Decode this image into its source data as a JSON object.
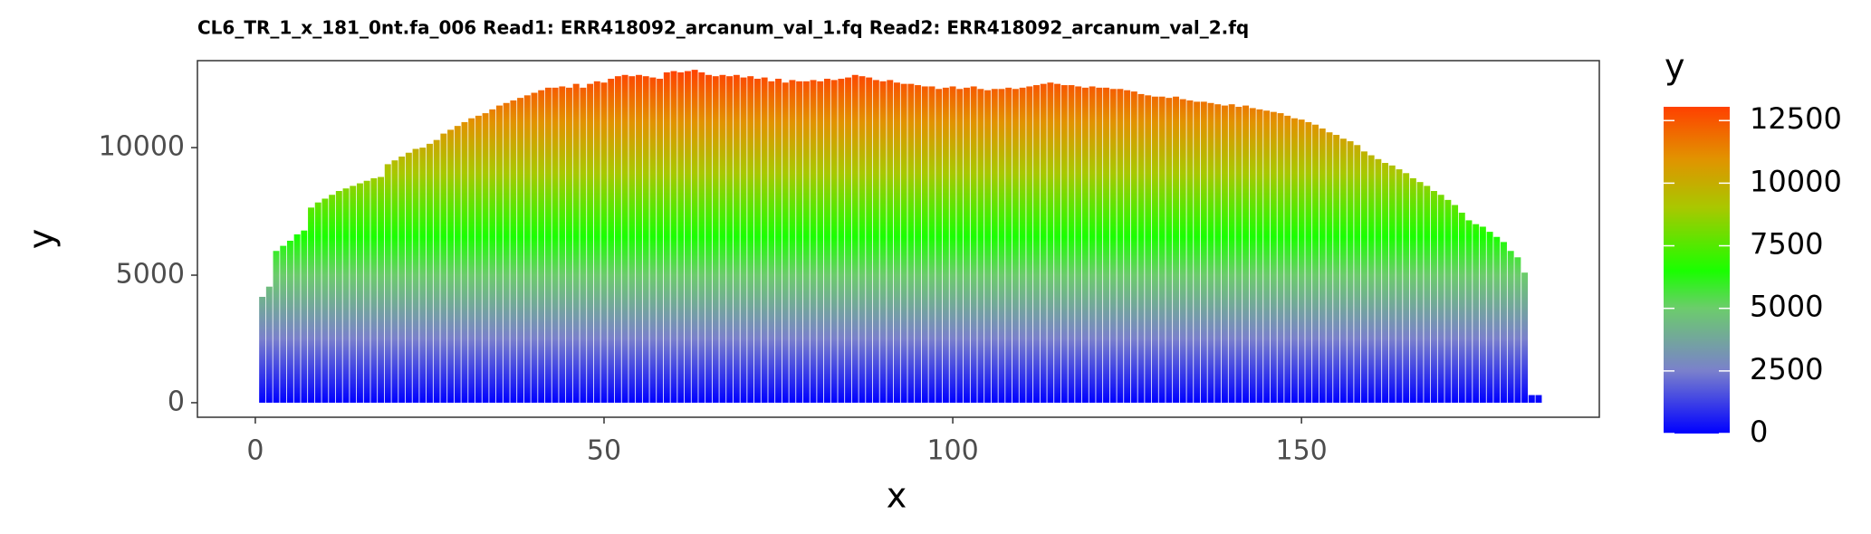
{
  "chart_data": {
    "type": "bar",
    "title": "CL6_TR_1_x_181_0nt.fa_006 Read1: ERR418092_arcanum_val_1.fq Read2: ERR418092_arcanum_val_2.fq",
    "x_label": "x",
    "y_label": "y",
    "x": [
      1,
      2,
      3,
      4,
      5,
      6,
      7,
      8,
      9,
      10,
      11,
      12,
      13,
      14,
      15,
      16,
      17,
      18,
      19,
      20,
      21,
      22,
      23,
      24,
      25,
      26,
      27,
      28,
      29,
      30,
      31,
      32,
      33,
      34,
      35,
      36,
      37,
      38,
      39,
      40,
      41,
      42,
      43,
      44,
      45,
      46,
      47,
      48,
      49,
      50,
      51,
      52,
      53,
      54,
      55,
      56,
      57,
      58,
      59,
      60,
      61,
      62,
      63,
      64,
      65,
      66,
      67,
      68,
      69,
      70,
      71,
      72,
      73,
      74,
      75,
      76,
      77,
      78,
      79,
      80,
      81,
      82,
      83,
      84,
      85,
      86,
      87,
      88,
      89,
      90,
      91,
      92,
      93,
      94,
      95,
      96,
      97,
      98,
      99,
      100,
      101,
      102,
      103,
      104,
      105,
      106,
      107,
      108,
      109,
      110,
      111,
      112,
      113,
      114,
      115,
      116,
      117,
      118,
      119,
      120,
      121,
      122,
      123,
      124,
      125,
      126,
      127,
      128,
      129,
      130,
      131,
      132,
      133,
      134,
      135,
      136,
      137,
      138,
      139,
      140,
      141,
      142,
      143,
      144,
      145,
      146,
      147,
      148,
      149,
      150,
      151,
      152,
      153,
      154,
      155,
      156,
      157,
      158,
      159,
      160,
      161,
      162,
      163,
      164,
      165,
      166,
      167,
      168,
      169,
      170,
      171,
      172,
      173,
      174,
      175,
      176,
      177,
      178,
      179,
      180,
      181,
      182,
      183,
      184
    ],
    "values": [
      4150,
      4550,
      5950,
      6150,
      6350,
      6600,
      6750,
      7650,
      7850,
      8000,
      8150,
      8300,
      8400,
      8500,
      8600,
      8700,
      8800,
      8850,
      9350,
      9500,
      9650,
      9800,
      9950,
      10000,
      10150,
      10300,
      10550,
      10700,
      10850,
      11000,
      11150,
      11250,
      11350,
      11500,
      11650,
      11750,
      11850,
      11950,
      12050,
      12150,
      12250,
      12350,
      12350,
      12400,
      12350,
      12500,
      12350,
      12500,
      12600,
      12550,
      12700,
      12800,
      12850,
      12800,
      12850,
      12800,
      12750,
      12700,
      12950,
      13000,
      12950,
      13000,
      13050,
      12950,
      12850,
      12800,
      12850,
      12800,
      12850,
      12750,
      12800,
      12700,
      12750,
      12600,
      12700,
      12550,
      12650,
      12600,
      12600,
      12650,
      12600,
      12700,
      12650,
      12700,
      12750,
      12850,
      12800,
      12750,
      12650,
      12600,
      12650,
      12550,
      12500,
      12500,
      12450,
      12400,
      12400,
      12300,
      12350,
      12400,
      12300,
      12350,
      12400,
      12300,
      12250,
      12300,
      12300,
      12350,
      12300,
      12350,
      12400,
      12450,
      12500,
      12550,
      12500,
      12450,
      12450,
      12400,
      12350,
      12400,
      12350,
      12350,
      12300,
      12300,
      12250,
      12200,
      12100,
      12050,
      12000,
      12000,
      11950,
      12000,
      11900,
      11850,
      11800,
      11800,
      11750,
      11700,
      11650,
      11700,
      11600,
      11650,
      11550,
      11500,
      11450,
      11400,
      11350,
      11250,
      11150,
      11100,
      11000,
      10900,
      10750,
      10600,
      10500,
      10350,
      10250,
      10100,
      9850,
      9700,
      9550,
      9400,
      9300,
      9150,
      9000,
      8800,
      8650,
      8500,
      8300,
      8150,
      7950,
      7750,
      7450,
      7150,
      7000,
      6900,
      6700,
      6500,
      6300,
      5950,
      5700,
      5100,
      300,
      300
    ],
    "xlim": [
      -8.3,
      192.7
    ],
    "xticks": [
      0,
      50,
      100,
      150
    ],
    "ylim": [
      -570,
      13410
    ],
    "yticks": [
      0,
      5000,
      10000
    ],
    "fill_scale": {
      "name": "y",
      "limits": [
        0,
        13050
      ],
      "ticks": [
        0,
        2500,
        5000,
        7500,
        10000,
        12500
      ],
      "stops": [
        {
          "value": 0,
          "color": "#0000ff"
        },
        {
          "value": 2500,
          "color": "#7a80cc"
        },
        {
          "value": 5000,
          "color": "#6ccc6c"
        },
        {
          "value": 6500,
          "color": "#1aff00"
        },
        {
          "value": 9000,
          "color": "#a8c800"
        },
        {
          "value": 11000,
          "color": "#e29200"
        },
        {
          "value": 13050,
          "color": "#ff4000"
        }
      ]
    }
  }
}
